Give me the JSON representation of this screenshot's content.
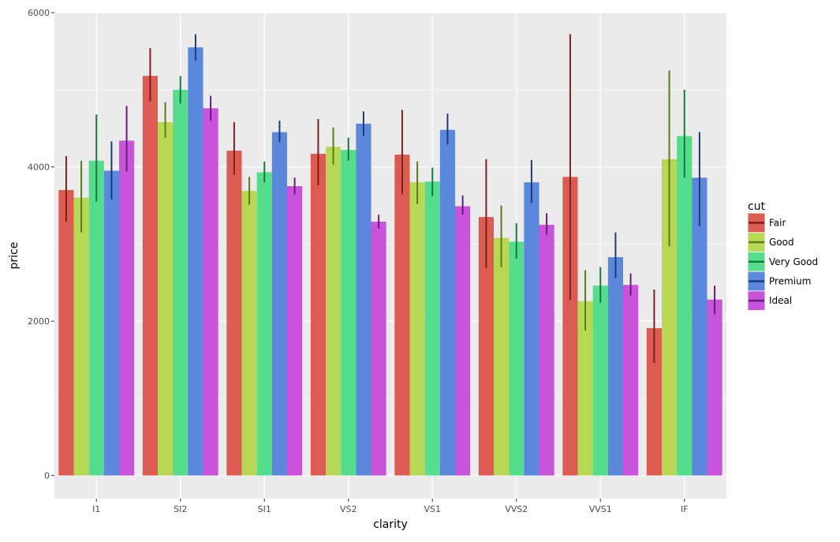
{
  "chart_data": {
    "type": "bar",
    "xlabel": "clarity",
    "ylabel": "price",
    "categories": [
      "I1",
      "SI2",
      "SI1",
      "VS2",
      "VS1",
      "VVS2",
      "VVS1",
      "IF"
    ],
    "ylim": [
      -300,
      6000
    ],
    "yticks": [
      0,
      2000,
      4000,
      6000
    ],
    "grid": true,
    "legend": {
      "title": "cut",
      "position": "right"
    },
    "series": [
      {
        "name": "Fair",
        "color": "#dc5b53",
        "errorbar_color": "#7a211b",
        "values": [
          3700,
          5180,
          4210,
          4170,
          4160,
          3350,
          3870,
          1910
        ],
        "ci_low": [
          3290,
          4850,
          3900,
          3760,
          3650,
          2690,
          2280,
          1460
        ],
        "ci_high": [
          4140,
          5540,
          4580,
          4620,
          4740,
          4100,
          5720,
          2410
        ]
      },
      {
        "name": "Good",
        "color": "#b8d855",
        "errorbar_color": "#5a7a1c",
        "values": [
          3600,
          4580,
          3690,
          4260,
          3800,
          3080,
          2260,
          4100
        ],
        "ci_low": [
          3150,
          4380,
          3510,
          4030,
          3520,
          2700,
          1880,
          2970
        ],
        "ci_high": [
          4080,
          4840,
          3870,
          4510,
          4070,
          3500,
          2660,
          5250
        ]
      },
      {
        "name": "Very Good",
        "color": "#55dc8c",
        "errorbar_color": "#157a3f",
        "values": [
          4080,
          5000,
          3930,
          4220,
          3810,
          3030,
          2460,
          4400
        ],
        "ci_low": [
          3550,
          4820,
          3800,
          4080,
          3620,
          2810,
          2240,
          3860
        ],
        "ci_high": [
          4680,
          5180,
          4070,
          4380,
          3990,
          3270,
          2700,
          5000
        ]
      },
      {
        "name": "Premium",
        "color": "#5b87dc",
        "errorbar_color": "#1b3b7a",
        "values": [
          3950,
          5550,
          4450,
          4560,
          4480,
          3800,
          2830,
          3860
        ],
        "ci_low": [
          3580,
          5380,
          4320,
          4400,
          4290,
          3530,
          2560,
          3230
        ],
        "ci_high": [
          4330,
          5720,
          4600,
          4720,
          4690,
          4090,
          3150,
          4450
        ]
      },
      {
        "name": "Ideal",
        "color": "#c854dc",
        "errorbar_color": "#6a1b7a",
        "values": [
          4340,
          4760,
          3750,
          3290,
          3490,
          3250,
          2470,
          2280
        ],
        "ci_low": [
          3940,
          4600,
          3640,
          3200,
          3380,
          3120,
          2330,
          2090
        ],
        "ci_high": [
          4790,
          4920,
          3860,
          3380,
          3630,
          3400,
          2620,
          2460
        ]
      }
    ]
  }
}
